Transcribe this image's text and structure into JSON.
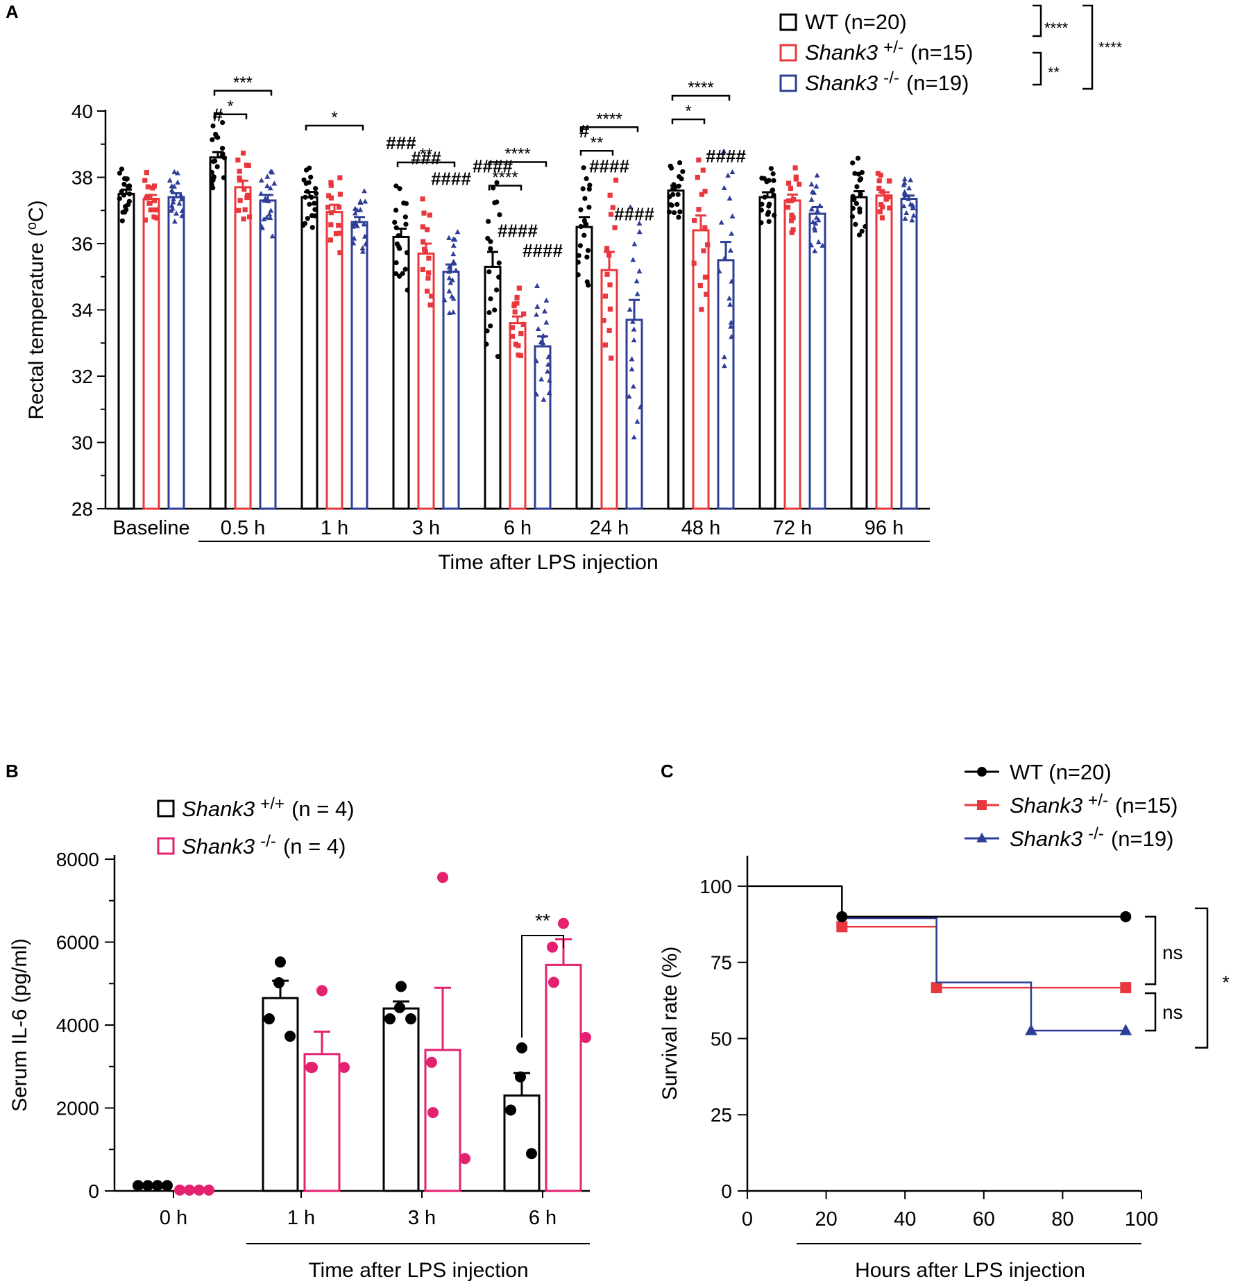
{
  "colors": {
    "wt": "#000000",
    "het": "#e8383d",
    "ko": "#2e3e97",
    "wt_b": "#000000",
    "ko_b": "#e3216f",
    "hash": "#2db34a"
  },
  "panels": {
    "a_label": "A",
    "b_label": "B",
    "c_label": "C"
  },
  "chart_data": [
    {
      "panel": "A",
      "type": "bar",
      "ylabel": "Rectal temperature (oC)",
      "ylabel_main": "Rectal temperature (",
      "ylabel_unit_sup": "o",
      "ylabel_unit": "C)",
      "xlabel": "Time after LPS injection",
      "ylim": [
        28,
        40
      ],
      "yticks": [
        28,
        30,
        32,
        34,
        36,
        38,
        40
      ],
      "categories": [
        "Baseline",
        "0.5 h",
        "1 h",
        "3 h",
        "6 h",
        "24 h",
        "48 h",
        "72 h",
        "96 h"
      ],
      "series": [
        {
          "name": "WT (n=20)",
          "legend_main": "WT (n=20)",
          "legend_sup": "",
          "legend_tail": "",
          "marker": "circle",
          "values": [
            37.5,
            38.6,
            37.4,
            36.2,
            35.3,
            36.5,
            37.6,
            37.4,
            37.4
          ],
          "sem": [
            0.13,
            0.16,
            0.16,
            0.25,
            0.45,
            0.3,
            0.15,
            0.15,
            0.18
          ]
        },
        {
          "name": "Shank3 +/- (n=15)",
          "legend_main": "Shank3",
          "legend_sup": "+/-",
          "legend_tail": "(n=15)",
          "marker": "square",
          "values": [
            37.35,
            37.7,
            36.95,
            35.7,
            33.6,
            35.2,
            36.4,
            37.3,
            37.45
          ],
          "sem": [
            0.12,
            0.2,
            0.22,
            0.3,
            0.2,
            0.55,
            0.45,
            0.18,
            0.1
          ]
        },
        {
          "name": "Shank3 -/- (n=19)",
          "legend_main": "Shank3",
          "legend_sup": "-/-",
          "legend_tail": "(n=19)",
          "marker": "triangle",
          "values": [
            37.4,
            37.3,
            36.65,
            35.15,
            32.9,
            33.7,
            35.5,
            36.9,
            37.35
          ],
          "sem": [
            0.12,
            0.17,
            0.15,
            0.22,
            0.3,
            0.6,
            0.55,
            0.2,
            0.1
          ]
        }
      ],
      "comparisons": [
        {
          "group": 1,
          "from": 0,
          "to": 2,
          "label": "***"
        },
        {
          "group": 1,
          "from": 0,
          "to": 1,
          "label": "*"
        },
        {
          "group": 2,
          "from": 0,
          "to": 2,
          "label": "*"
        },
        {
          "group": 3,
          "from": 0,
          "to": 2,
          "label": "**"
        },
        {
          "group": 4,
          "from": 0,
          "to": 2,
          "label": "****"
        },
        {
          "group": 4,
          "from": 0,
          "to": 1,
          "label": "****"
        },
        {
          "group": 5,
          "from": 0,
          "to": 2,
          "label": "****"
        },
        {
          "group": 5,
          "from": 0,
          "to": 1,
          "label": "**"
        },
        {
          "group": 6,
          "from": 0,
          "to": 2,
          "label": "****"
        },
        {
          "group": 6,
          "from": 0,
          "to": 1,
          "label": "*"
        }
      ],
      "hash_marks": [
        {
          "group": 1,
          "series": 0,
          "label": "#"
        },
        {
          "group": 3,
          "series": 0,
          "label": "###"
        },
        {
          "group": 3,
          "series": 1,
          "label": "###"
        },
        {
          "group": 3,
          "series": 2,
          "label": "####"
        },
        {
          "group": 4,
          "series": 0,
          "label": "####"
        },
        {
          "group": 4,
          "series": 1,
          "label": "####"
        },
        {
          "group": 4,
          "series": 2,
          "label": "####"
        },
        {
          "group": 5,
          "series": 0,
          "label": "#"
        },
        {
          "group": 5,
          "series": 1,
          "label": "####"
        },
        {
          "group": 5,
          "series": 2,
          "label": "####"
        },
        {
          "group": 6,
          "series": 2,
          "label": "####"
        }
      ],
      "overall_stats": [
        {
          "between": "WT vs Shank3 +/-",
          "label": "****"
        },
        {
          "between": "Shank3 +/- vs Shank3 -/-",
          "label": "**"
        },
        {
          "between": "WT vs Shank3 -/-",
          "label": "****"
        }
      ]
    },
    {
      "panel": "B",
      "type": "bar",
      "ylabel": "Serum IL-6 (pg/ml)",
      "xlabel": "Time after LPS injection",
      "ylim": [
        0,
        8000
      ],
      "yticks": [
        0,
        2000,
        4000,
        6000,
        8000
      ],
      "categories": [
        "0 h",
        "1 h",
        "3 h",
        "6 h"
      ],
      "series": [
        {
          "name": "Shank3 +/+ (n = 4)",
          "legend_main": "Shank3",
          "legend_sup": "+/+",
          "legend_tail": "(n = 4)",
          "values": [
            100,
            4650,
            4400,
            2300
          ],
          "sem": [
            0,
            420,
            170,
            540
          ],
          "points": [
            [
              130,
              130,
              130,
              130
            ],
            [
              5520,
              5020,
              4150,
              3730
            ],
            [
              4930,
              4420,
              4150,
              4150
            ],
            [
              3450,
              2750,
              1950,
              900
            ]
          ]
        },
        {
          "name": "Shank3 -/- (n = 4)",
          "legend_main": "Shank3",
          "legend_sup": "-/-",
          "legend_tail": "(n = 4)",
          "values": [
            0,
            3300,
            3400,
            5450
          ],
          "sem": [
            0,
            540,
            1500,
            620
          ],
          "points": [
            [
              20,
              20,
              20,
              20
            ],
            [
              4830,
              2980,
              2980,
              2980
            ],
            [
              7560,
              3100,
              1890,
              780
            ],
            [
              6450,
              5880,
              5030,
              3700
            ]
          ]
        }
      ],
      "comparisons": [
        {
          "group": 3,
          "label": "**"
        }
      ]
    },
    {
      "panel": "C",
      "type": "line",
      "ylabel": "Survival rate (%)",
      "xlabel": "Hours after LPS injection",
      "xlim": [
        0,
        100
      ],
      "ylim": [
        0,
        110
      ],
      "xticks": [
        0,
        20,
        40,
        60,
        80,
        100
      ],
      "yticks": [
        0,
        25,
        50,
        75,
        100
      ],
      "series": [
        {
          "name": "WT (n=20)",
          "legend_main": "WT (n=20)",
          "legend_sup": "",
          "legend_tail": "",
          "marker": "circle",
          "steps": [
            [
              0,
              100
            ],
            [
              24,
              90
            ],
            [
              96,
              90
            ]
          ],
          "markers": [
            [
              24,
              90
            ],
            [
              96,
              90
            ]
          ]
        },
        {
          "name": "Shank3+/- (n=15)",
          "legend_main": "Shank3",
          "legend_sup": "+/-",
          "legend_tail": "(n=15)",
          "marker": "square",
          "steps": [
            [
              24,
              86.7
            ],
            [
              48,
              66.7
            ],
            [
              96,
              66.7
            ]
          ],
          "markers": [
            [
              24,
              86.7
            ],
            [
              48,
              66.7
            ],
            [
              96,
              66.7
            ]
          ]
        },
        {
          "name": "Shank3-/- (n=19)",
          "legend_main": "Shank3",
          "legend_sup": "-/-",
          "legend_tail": "(n=19)",
          "marker": "triangle",
          "steps": [
            [
              24,
              89.5
            ],
            [
              48,
              68.4
            ],
            [
              72,
              52.6
            ],
            [
              96,
              52.6
            ]
          ],
          "markers": [
            [
              72,
              52.6
            ],
            [
              96,
              52.6
            ]
          ]
        }
      ],
      "stats": [
        {
          "between": "WT vs Shank3+/-",
          "label": "ns"
        },
        {
          "between": "Shank3+/- vs Shank3-/-",
          "label": "ns"
        },
        {
          "between": "WT vs Shank3-/-",
          "label": "*"
        }
      ]
    }
  ]
}
